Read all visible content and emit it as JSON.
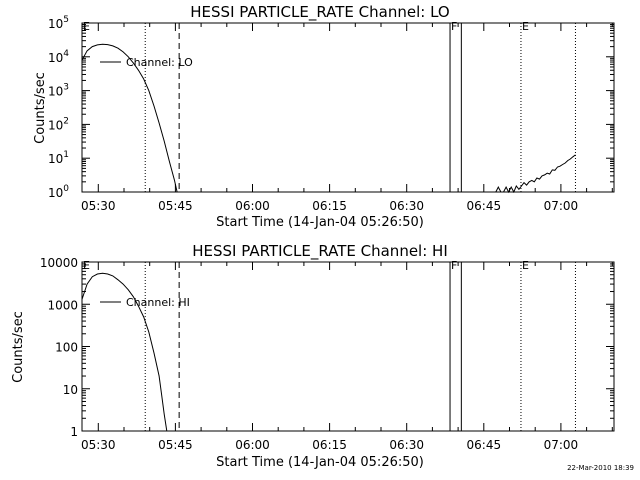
{
  "footer": {
    "timestamp": "22-Mar-2010 18:39"
  },
  "chart_data": [
    {
      "type": "line",
      "title": "HESSI PARTICLE_RATE Channel: LO",
      "xlabel": "Start Time (14-Jan-04 05:26:50)",
      "ylabel": "Counts/sec",
      "x_unit": "minutes after 05:26:50",
      "xlim": [
        0,
        103.5
      ],
      "ylim": [
        1,
        100000
      ],
      "yscale": "log",
      "x_ticks": [
        "05:30",
        "05:45",
        "06:00",
        "06:15",
        "06:30",
        "06:45",
        "07:00"
      ],
      "x_tick_minutes": [
        3.17,
        18.17,
        33.17,
        48.17,
        63.17,
        78.17,
        93.17
      ],
      "y_ticks": [
        {
          "base": "10",
          "exp": "0",
          "value": 1
        },
        {
          "base": "10",
          "exp": "1",
          "value": 10
        },
        {
          "base": "10",
          "exp": "2",
          "value": 100
        },
        {
          "base": "10",
          "exp": "3",
          "value": 1000
        },
        {
          "base": "10",
          "exp": "4",
          "value": 10000
        },
        {
          "base": "10",
          "exp": "5",
          "value": 100000
        }
      ],
      "legend": "Channel: LO",
      "markers": [
        {
          "label": "E",
          "x": 0.0,
          "style": "none"
        },
        {
          "label": "",
          "x": 12.3,
          "style": "dotted"
        },
        {
          "label": "",
          "x": 18.9,
          "style": "dashed"
        },
        {
          "label": "F",
          "x": 71.6,
          "style": "solid"
        },
        {
          "label": "",
          "x": 73.8,
          "style": "solid"
        },
        {
          "label": "E",
          "x": 85.4,
          "style": "dotted"
        },
        {
          "label": "",
          "x": 96.0,
          "style": "dotted"
        }
      ],
      "series": [
        {
          "segments": [
            [
              [
                0.0,
                8000
              ],
              [
                1.0,
                15000
              ],
              [
                2.0,
                20000
              ],
              [
                3.0,
                22500
              ],
              [
                4.0,
                23500
              ],
              [
                5.0,
                23000
              ],
              [
                6.0,
                21000
              ],
              [
                7.0,
                18000
              ],
              [
                8.0,
                14000
              ],
              [
                9.0,
                10000
              ],
              [
                10.0,
                6500
              ],
              [
                11.0,
                4000
              ],
              [
                12.0,
                2200
              ],
              [
                13.0,
                1000
              ],
              [
                14.0,
                350
              ],
              [
                15.0,
                110
              ],
              [
                16.0,
                32
              ],
              [
                17.0,
                8
              ],
              [
                18.0,
                2.2
              ],
              [
                18.5,
                1.0
              ]
            ],
            [
              [
                80.5,
                1.0
              ],
              [
                81.0,
                1.4
              ],
              [
                81.5,
                1.0
              ]
            ],
            [
              [
                82.0,
                1.0
              ],
              [
                82.5,
                1.4
              ],
              [
                83.0,
                1.0
              ],
              [
                83.5,
                1.4
              ],
              [
                84.0,
                1.0
              ],
              [
                84.5,
                1.5
              ],
              [
                85.0,
                1.2
              ],
              [
                85.5,
                1.5
              ],
              [
                86.0,
                1.9
              ],
              [
                86.5,
                1.6
              ],
              [
                87.0,
                2.0
              ],
              [
                87.5,
                2.2
              ],
              [
                88.0,
                2.0
              ],
              [
                88.5,
                2.6
              ],
              [
                89.0,
                2.4
              ],
              [
                89.5,
                3.0
              ],
              [
                90.0,
                3.2
              ],
              [
                90.5,
                3.6
              ],
              [
                91.0,
                3.4
              ],
              [
                91.5,
                4.5
              ],
              [
                92.0,
                4.4
              ],
              [
                92.5,
                5.5
              ],
              [
                93.0,
                5.8
              ],
              [
                93.5,
                6.5
              ],
              [
                94.0,
                7.2
              ],
              [
                94.5,
                8.5
              ],
              [
                95.0,
                9.5
              ],
              [
                95.5,
                11
              ],
              [
                96.0,
                12.5
              ]
            ]
          ]
        }
      ]
    },
    {
      "type": "line",
      "title": "HESSI PARTICLE_RATE Channel: HI",
      "xlabel": "Start Time (14-Jan-04 05:26:50)",
      "ylabel": "Counts/sec",
      "x_unit": "minutes after 05:26:50",
      "xlim": [
        0,
        103.5
      ],
      "ylim": [
        1,
        10000
      ],
      "yscale": "log",
      "x_ticks": [
        "05:30",
        "05:45",
        "06:00",
        "06:15",
        "06:30",
        "06:45",
        "07:00"
      ],
      "x_tick_minutes": [
        3.17,
        18.17,
        33.17,
        48.17,
        63.17,
        78.17,
        93.17
      ],
      "y_ticks": [
        {
          "label": "1",
          "value": 1
        },
        {
          "label": "10",
          "value": 10
        },
        {
          "label": "100",
          "value": 100
        },
        {
          "label": "1000",
          "value": 1000
        },
        {
          "label": "10000",
          "value": 10000
        }
      ],
      "legend": "Channel: HI",
      "markers": [
        {
          "label": "E",
          "x": 0.0,
          "style": "none"
        },
        {
          "label": "",
          "x": 12.3,
          "style": "dotted"
        },
        {
          "label": "",
          "x": 18.9,
          "style": "dashed"
        },
        {
          "label": "F",
          "x": 71.6,
          "style": "solid"
        },
        {
          "label": "",
          "x": 73.8,
          "style": "solid"
        },
        {
          "label": "E",
          "x": 85.4,
          "style": "dotted"
        },
        {
          "label": "",
          "x": 96.0,
          "style": "dotted"
        }
      ],
      "series": [
        {
          "segments": [
            [
              [
                0.0,
                1300
              ],
              [
                1.0,
                3000
              ],
              [
                2.0,
                4500
              ],
              [
                3.0,
                5200
              ],
              [
                4.0,
                5400
              ],
              [
                5.0,
                5200
              ],
              [
                6.0,
                4700
              ],
              [
                7.0,
                3800
              ],
              [
                8.0,
                3000
              ],
              [
                9.0,
                2200
              ],
              [
                10.0,
                1500
              ],
              [
                11.0,
                900
              ],
              [
                12.0,
                500
              ],
              [
                13.0,
                220
              ],
              [
                14.0,
                70
              ],
              [
                15.0,
                20
              ],
              [
                15.5,
                7
              ],
              [
                16.0,
                2.5
              ],
              [
                16.5,
                1.0
              ]
            ]
          ]
        }
      ]
    }
  ]
}
